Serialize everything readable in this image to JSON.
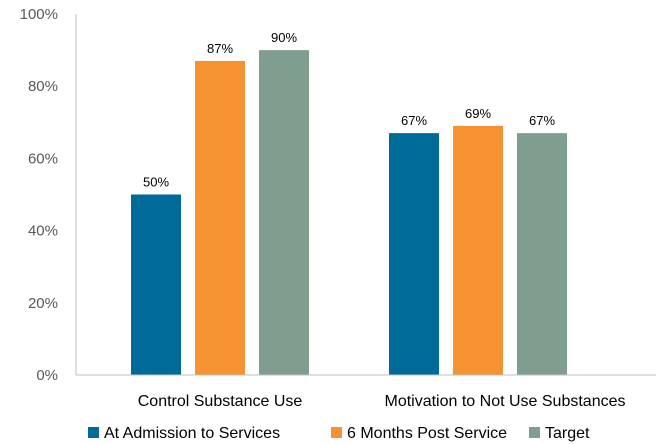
{
  "chart_data": {
    "type": "bar",
    "categories": [
      "Control Substance Use",
      "Motivation to Not Use Substances"
    ],
    "series": [
      {
        "name": "At Admission to Services",
        "values": [
          50,
          67
        ],
        "color": "#006a99"
      },
      {
        "name": "6 Months Post Service",
        "values": [
          87,
          69
        ],
        "color": "#f59231"
      },
      {
        "name": "Target",
        "values": [
          90,
          67
        ],
        "color": "#7f9e90"
      }
    ],
    "ylim": [
      0,
      100
    ],
    "yticks": [
      0,
      20,
      40,
      60,
      80,
      100
    ],
    "tick_suffix": "%",
    "value_suffix": "%",
    "grid": false,
    "legend_position": "bottom"
  }
}
